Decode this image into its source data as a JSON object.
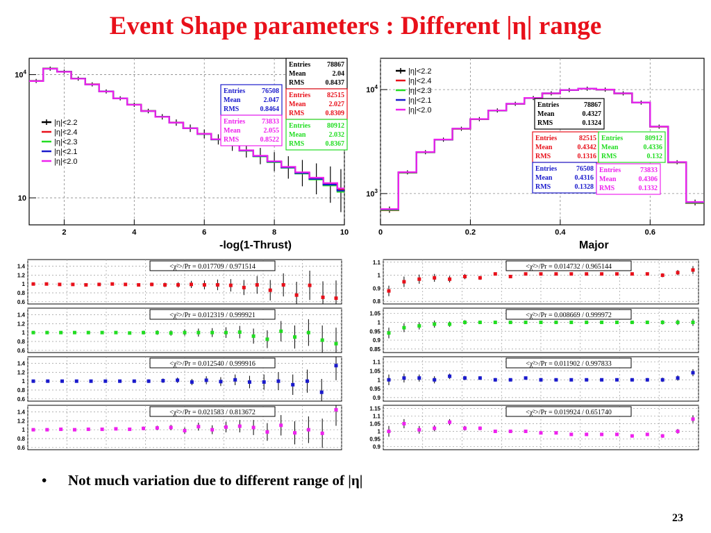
{
  "title": "Event Shape parameters : Different |η| range",
  "bullet": "Not much variation due to different range of |η|",
  "page_number": "23",
  "colors": {
    "title": "#e8101a",
    "black": "#000000",
    "red": "#e8101a",
    "green": "#22dd22",
    "blue": "#1a1acc",
    "magenta": "#ee22ee"
  },
  "chart_data": [
    {
      "type": "histogram",
      "xlabel": "-log(1-Thrust)",
      "ylabel": "",
      "log_y": true,
      "xlim": [
        1,
        10
      ],
      "ylim": [
        2.2,
        25000
      ],
      "xticks": [
        "2",
        "4",
        "6",
        "8",
        "10"
      ],
      "yticks": [
        "10",
        "10^4"
      ],
      "grid": true,
      "legend_position": "left",
      "bin_edges": [
        1.0,
        1.4,
        1.8,
        2.2,
        2.6,
        3.0,
        3.4,
        3.8,
        4.2,
        4.6,
        5.0,
        5.4,
        5.8,
        6.2,
        6.6,
        7.0,
        7.4,
        7.8,
        8.2,
        8.6,
        9.0,
        9.4,
        9.8,
        10.0
      ],
      "series": [
        {
          "name": "|η|<2.2",
          "color": "black",
          "markers": true,
          "values": [
            7000,
            14000,
            11800,
            8000,
            5800,
            3900,
            2650,
            1850,
            1300,
            940,
            680,
            495,
            360,
            265,
            195,
            142,
            104,
            76,
            55,
            40,
            29,
            21,
            15
          ],
          "stats": {
            "entries": "78867",
            "mean": "2.04",
            "rms": "0.8437"
          }
        },
        {
          "name": "|η|<2.4",
          "color": "red",
          "values": [
            7050,
            14100,
            11900,
            8050,
            5850,
            3920,
            2660,
            1860,
            1305,
            945,
            685,
            497,
            362,
            266,
            196,
            143,
            105,
            77,
            56,
            41,
            30,
            22,
            16
          ],
          "stats": {
            "entries": "82515",
            "mean": "2.027",
            "rms": "0.8309"
          }
        },
        {
          "name": "|η|<2.3",
          "color": "green",
          "values": [
            7020,
            14050,
            11850,
            8030,
            5830,
            3910,
            2655,
            1855,
            1302,
            942,
            682,
            494,
            358,
            262,
            192,
            140,
            102,
            74,
            54,
            39,
            28,
            20,
            14
          ],
          "stats": {
            "entries": "80912",
            "mean": "2.032",
            "rms": "0.8367"
          }
        },
        {
          "name": "|η|<2.1",
          "color": "blue",
          "values": [
            6980,
            13950,
            11750,
            7980,
            5790,
            3895,
            2645,
            1848,
            1298,
            938,
            679,
            494,
            360,
            265,
            195,
            142,
            104,
            76,
            55,
            40,
            29,
            21,
            15
          ],
          "stats": {
            "entries": "76508",
            "mean": "2.047",
            "rms": "0.8464"
          }
        },
        {
          "name": "|η|<2.0",
          "color": "magenta",
          "values": [
            6950,
            13900,
            11700,
            7960,
            5780,
            3890,
            2640,
            1845,
            1296,
            936,
            678,
            495,
            362,
            267,
            197,
            144,
            106,
            78,
            57,
            42,
            31,
            23,
            17
          ],
          "stats": {
            "entries": "73833",
            "mean": "2.055",
            "rms": "0.8522"
          }
        }
      ]
    },
    {
      "type": "histogram",
      "xlabel": "Major",
      "ylabel": "",
      "log_y": true,
      "xlim": [
        0,
        0.72
      ],
      "ylim": [
        500,
        20000
      ],
      "xticks": [
        "0",
        "0.2",
        "0.4",
        "0.6"
      ],
      "yticks": [
        "10^3",
        "10^4"
      ],
      "grid": true,
      "legend_position": "top-left",
      "bin_edges": [
        0,
        0.04,
        0.08,
        0.12,
        0.16,
        0.2,
        0.24,
        0.28,
        0.32,
        0.36,
        0.4,
        0.44,
        0.48,
        0.52,
        0.56,
        0.6,
        0.64,
        0.68,
        0.72
      ],
      "series": [
        {
          "name": "|η|<2.2",
          "color": "black",
          "markers": true,
          "values": [
            700,
            1600,
            2500,
            3300,
            4200,
            5200,
            6300,
            7300,
            8300,
            9200,
            9900,
            10200,
            10000,
            9200,
            7500,
            4400,
            2000,
            820
          ],
          "stats": {
            "entries": "78867",
            "mean": "0.4327",
            "rms": "0.1324"
          }
        },
        {
          "name": "|η|<2.4",
          "color": "red",
          "values": [
            690,
            1590,
            2490,
            3290,
            4190,
            5190,
            6290,
            7290,
            8290,
            9190,
            9890,
            10190,
            9990,
            9190,
            7490,
            4390,
            1990,
            810
          ],
          "stats": {
            "entries": "82515",
            "mean": "0.4342",
            "rms": "0.1316"
          }
        },
        {
          "name": "|η|<2.3",
          "color": "green",
          "values": [
            695,
            1595,
            2495,
            3295,
            4195,
            5195,
            6295,
            7295,
            8295,
            9195,
            9895,
            10195,
            9995,
            9195,
            7495,
            4395,
            1995,
            815
          ],
          "stats": {
            "entries": "80912",
            "mean": "0.4336",
            "rms": "0.132"
          }
        },
        {
          "name": "|η|<2.1",
          "color": "blue",
          "values": [
            705,
            1605,
            2505,
            3305,
            4205,
            5205,
            6305,
            7305,
            8305,
            9205,
            9905,
            10205,
            10005,
            9205,
            7505,
            4405,
            2005,
            825
          ],
          "stats": {
            "entries": "76508",
            "mean": "0.4316",
            "rms": "0.1328"
          }
        },
        {
          "name": "|η|<2.0",
          "color": "magenta",
          "values": [
            710,
            1610,
            2510,
            3310,
            4210,
            5210,
            6310,
            7310,
            8310,
            9210,
            9910,
            10210,
            10010,
            9210,
            7510,
            4410,
            2010,
            830
          ],
          "stats": {
            "entries": "73833",
            "mean": "0.4306",
            "rms": "0.1332"
          }
        }
      ]
    },
    {
      "type": "ratio",
      "color": "red",
      "label": "<χ²>/Pr = 0.017709 / 0.971514",
      "ylim": [
        0.55,
        1.55
      ],
      "yticks": [
        "0.6",
        "0.8",
        "1",
        "1.2",
        "1.4"
      ],
      "values": [
        1.0,
        1.0,
        0.99,
        0.99,
        0.98,
        0.99,
        1.0,
        0.99,
        0.98,
        0.99,
        0.98,
        0.98,
        0.99,
        0.98,
        0.98,
        0.97,
        0.92,
        0.98,
        0.86,
        0.98,
        0.75,
        0.97,
        0.7,
        0.68
      ],
      "errors": [
        0.02,
        0.02,
        0.02,
        0.02,
        0.02,
        0.02,
        0.02,
        0.02,
        0.03,
        0.04,
        0.05,
        0.06,
        0.08,
        0.1,
        0.12,
        0.14,
        0.17,
        0.2,
        0.23,
        0.26,
        0.3,
        0.33,
        0.36,
        0.4
      ]
    },
    {
      "type": "ratio",
      "color": "red",
      "label": "<χ²>/Pr = 0.014732 / 0.965144",
      "ylim": [
        0.78,
        1.12
      ],
      "yticks": [
        "0.8",
        "0.9",
        "1",
        "1.1"
      ],
      "values": [
        0.88,
        0.95,
        0.97,
        0.98,
        0.97,
        0.99,
        0.98,
        1.01,
        0.99,
        1.01,
        1.01,
        1.01,
        1.01,
        1.01,
        1.01,
        1.01,
        1.01,
        1.01,
        1.0,
        1.02,
        1.04
      ],
      "errors": [
        0.04,
        0.04,
        0.035,
        0.03,
        0.025,
        0.02,
        0.015,
        0.012,
        0.01,
        0.01,
        0.008,
        0.008,
        0.008,
        0.008,
        0.008,
        0.008,
        0.01,
        0.012,
        0.015,
        0.02,
        0.03
      ]
    },
    {
      "type": "ratio",
      "color": "green",
      "label": "<χ²>/Pr = 0.012319 / 0.999921",
      "ylim": [
        0.55,
        1.55
      ],
      "yticks": [
        "0.6",
        "0.8",
        "1",
        "1.2",
        "1.4"
      ],
      "values": [
        1.0,
        1.0,
        1.0,
        1.0,
        1.0,
        1.0,
        1.0,
        0.99,
        1.0,
        1.0,
        0.99,
        1.0,
        1.0,
        1.0,
        1.0,
        1.01,
        0.92,
        0.85,
        1.03,
        0.9,
        1.0,
        0.83,
        0.75
      ],
      "errors": [
        0.02,
        0.02,
        0.02,
        0.02,
        0.02,
        0.02,
        0.03,
        0.03,
        0.04,
        0.05,
        0.06,
        0.07,
        0.09,
        0.1,
        0.12,
        0.14,
        0.17,
        0.2,
        0.23,
        0.26,
        0.3,
        0.33,
        0.36
      ]
    },
    {
      "type": "ratio",
      "color": "green",
      "label": "<χ²>/Pr = 0.008669 / 0.999972",
      "ylim": [
        0.83,
        1.08
      ],
      "yticks": [
        "0.85",
        "0.9",
        "0.95",
        "1",
        "1.05"
      ],
      "values": [
        0.94,
        0.97,
        0.98,
        0.99,
        0.99,
        1.0,
        1.0,
        1.0,
        1.0,
        1.0,
        1.0,
        1.0,
        1.0,
        1.0,
        1.0,
        1.0,
        1.0,
        1.0,
        1.0,
        1.0,
        1.0
      ],
      "errors": [
        0.03,
        0.025,
        0.02,
        0.02,
        0.015,
        0.012,
        0.01,
        0.01,
        0.008,
        0.008,
        0.008,
        0.008,
        0.008,
        0.008,
        0.008,
        0.008,
        0.008,
        0.01,
        0.012,
        0.015,
        0.02
      ]
    },
    {
      "type": "ratio",
      "color": "blue",
      "label": "<χ²>/Pr = 0.012540 / 0.999916",
      "ylim": [
        0.55,
        1.55
      ],
      "yticks": [
        "0.6",
        "0.8",
        "1",
        "1.2",
        "1.4"
      ],
      "values": [
        1.0,
        1.0,
        1.0,
        1.0,
        1.0,
        1.0,
        1.0,
        1.0,
        1.0,
        1.01,
        1.02,
        0.98,
        1.02,
        0.99,
        1.03,
        0.98,
        0.98,
        1.0,
        0.92,
        1.0,
        0.75,
        1.35
      ],
      "errors": [
        0.02,
        0.02,
        0.02,
        0.02,
        0.02,
        0.02,
        0.03,
        0.03,
        0.04,
        0.05,
        0.06,
        0.07,
        0.09,
        0.1,
        0.12,
        0.14,
        0.17,
        0.2,
        0.23,
        0.26,
        0.3,
        0.33
      ]
    },
    {
      "type": "ratio",
      "color": "blue",
      "label": "<χ²>/Pr = 0.011902 / 0.997833",
      "ylim": [
        0.88,
        1.13
      ],
      "yticks": [
        "0.9",
        "0.95",
        "1",
        "1.05",
        "1.1"
      ],
      "values": [
        1.0,
        1.01,
        1.01,
        1.0,
        1.02,
        1.01,
        1.01,
        1.0,
        1.0,
        1.01,
        1.0,
        1.0,
        1.0,
        1.0,
        1.0,
        1.0,
        1.0,
        1.0,
        1.0,
        1.01,
        1.04
      ],
      "errors": [
        0.03,
        0.025,
        0.02,
        0.02,
        0.015,
        0.012,
        0.01,
        0.01,
        0.008,
        0.008,
        0.008,
        0.008,
        0.008,
        0.008,
        0.008,
        0.008,
        0.008,
        0.01,
        0.012,
        0.015,
        0.02
      ]
    },
    {
      "type": "ratio",
      "color": "magenta",
      "label": "<χ²>/Pr = 0.021583 / 0.813672",
      "ylim": [
        0.55,
        1.55
      ],
      "yticks": [
        "0.6",
        "0.8",
        "1",
        "1.2",
        "1.4"
      ],
      "values": [
        1.0,
        1.0,
        1.01,
        1.0,
        1.01,
        1.01,
        1.02,
        1.01,
        1.03,
        1.04,
        1.05,
        0.98,
        1.07,
        1.0,
        1.06,
        1.08,
        1.05,
        0.95,
        1.1,
        0.93,
        1.0,
        0.92,
        1.45
      ],
      "errors": [
        0.02,
        0.02,
        0.02,
        0.02,
        0.02,
        0.02,
        0.03,
        0.03,
        0.04,
        0.05,
        0.06,
        0.07,
        0.09,
        0.1,
        0.12,
        0.14,
        0.17,
        0.2,
        0.23,
        0.26,
        0.3,
        0.33,
        0.36
      ]
    },
    {
      "type": "ratio",
      "color": "magenta",
      "label": "<χ²>/Pr = 0.019924 / 0.651740",
      "ylim": [
        0.88,
        1.17
      ],
      "yticks": [
        "0.9",
        "0.95",
        "1",
        "1.05",
        "1.1",
        "1.15"
      ],
      "values": [
        1.0,
        1.05,
        1.01,
        1.02,
        1.06,
        1.02,
        1.02,
        1.0,
        1.0,
        1.0,
        0.99,
        0.99,
        0.98,
        0.98,
        0.98,
        0.98,
        0.97,
        0.98,
        0.97,
        1.0,
        1.08
      ],
      "errors": [
        0.035,
        0.03,
        0.025,
        0.02,
        0.02,
        0.015,
        0.012,
        0.01,
        0.01,
        0.01,
        0.008,
        0.008,
        0.008,
        0.008,
        0.008,
        0.008,
        0.01,
        0.01,
        0.012,
        0.015,
        0.025
      ]
    }
  ]
}
